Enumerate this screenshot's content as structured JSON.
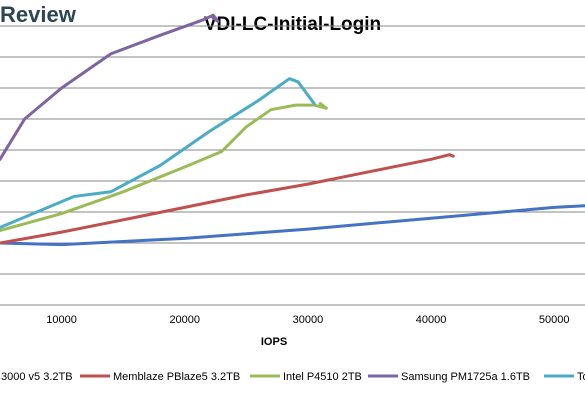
{
  "watermark": "Review",
  "chart_data": {
    "type": "line",
    "title": "VDI-LC-Initial-Login",
    "xlabel": "IOPS",
    "ylabel": "",
    "xlim": [
      5000,
      52500
    ],
    "ylim": [
      0,
      9
    ],
    "x_ticks": [
      10000,
      20000,
      30000,
      40000,
      50000
    ],
    "x_tick_labels": [
      "10000",
      "20000",
      "30000",
      "40000",
      "50000"
    ],
    "grid": "horizontal",
    "legend": "bottom",
    "series": [
      {
        "name": "3000 v5 3.2TB",
        "color": "#4472c4",
        "x": [
          5000,
          10000,
          20000,
          30000,
          40000,
          50000,
          52500
        ],
        "y": [
          2.0,
          1.95,
          2.15,
          2.45,
          2.8,
          3.15,
          3.2
        ]
      },
      {
        "name": "Memblaze PBlaze5 3.2TB",
        "color": "#c0504d",
        "x": [
          5000,
          10000,
          15000,
          20000,
          25000,
          30000,
          35000,
          40000,
          41500,
          41800
        ],
        "y": [
          2.0,
          2.35,
          2.75,
          3.15,
          3.55,
          3.9,
          4.3,
          4.7,
          4.85,
          4.8
        ]
      },
      {
        "name": "Intel P4510 2TB",
        "color": "#9bbb59",
        "x": [
          5000,
          10000,
          15000,
          20000,
          23000,
          25000,
          27000,
          29000,
          30500,
          31500,
          31000
        ],
        "y": [
          2.4,
          2.95,
          3.65,
          4.45,
          4.95,
          5.75,
          6.3,
          6.45,
          6.45,
          6.35,
          6.5
        ]
      },
      {
        "name": "Samsung PM1725a 1.6TB",
        "color": "#8064a2",
        "x": [
          5000,
          7000,
          10000,
          14000,
          18000,
          21500,
          22300,
          22700,
          22200
        ],
        "y": [
          4.7,
          6.0,
          7.0,
          8.1,
          8.7,
          9.2,
          9.35,
          9.15,
          9.3
        ]
      },
      {
        "name": "Tos",
        "color": "#4bacc6",
        "x": [
          5000,
          8000,
          11000,
          14000,
          18000,
          22000,
          26000,
          28500,
          29200,
          30500
        ],
        "y": [
          2.5,
          3.0,
          3.5,
          3.65,
          4.5,
          5.6,
          6.6,
          7.3,
          7.2,
          6.5
        ]
      }
    ]
  }
}
